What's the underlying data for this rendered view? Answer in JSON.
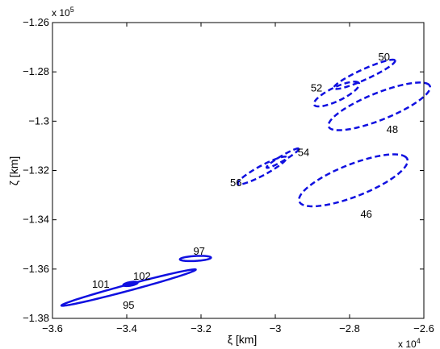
{
  "chart_data": {
    "type": "scatter",
    "title": "",
    "xlabel": "ξ [km]",
    "ylabel": "ζ [km]",
    "x_multiplier": "x 10",
    "x_multiplier_exp": "4",
    "y_multiplier": "x 10",
    "y_multiplier_exp": "5",
    "xlim": [
      -36000,
      -26000
    ],
    "ylim": [
      -138000,
      -126000
    ],
    "x_ticks": [
      -36000,
      -34000,
      -32000,
      -30000,
      -28000,
      -26000
    ],
    "x_tick_labels": [
      "−3.6",
      "−3.4",
      "−3.2",
      "−3",
      "−2.8",
      "−2.6"
    ],
    "y_ticks": [
      -138000,
      -136000,
      -134000,
      -132000,
      -130000,
      -128000,
      -126000
    ],
    "y_tick_labels": [
      "−1.38",
      "−1.36",
      "−1.34",
      "−1.32",
      "−1.3",
      "−1.28",
      "−1.26"
    ],
    "grid": false,
    "color": "#1010e0",
    "ellipses": [
      {
        "label": "46",
        "style": "dashed",
        "cx": -27900,
        "cy": -132400,
        "rx": 1700,
        "ry": 600,
        "angle_deg": 33,
        "label_x": -27550,
        "label_y": -133750
      },
      {
        "label": "48",
        "style": "dashed",
        "cx": -27200,
        "cy": -129400,
        "rx": 1600,
        "ry": 500,
        "angle_deg": 33,
        "label_x": -26850,
        "label_y": -130320
      },
      {
        "label": "50",
        "style": "dashed",
        "cx": -27600,
        "cy": -128100,
        "rx": 1000,
        "ry": 190,
        "angle_deg": 35,
        "label_x": -27070,
        "label_y": -127370
      },
      {
        "label": "52",
        "style": "dashed",
        "cx": -28350,
        "cy": -128900,
        "rx": 750,
        "ry": 250,
        "angle_deg": 38,
        "label_x": -28890,
        "label_y": -128630
      },
      {
        "label": "54",
        "style": "dashed",
        "cx": -29800,
        "cy": -131500,
        "rx": 580,
        "ry": 90,
        "angle_deg": 42,
        "label_x": -29240,
        "label_y": -131240
      },
      {
        "label": "56",
        "style": "dashed",
        "cx": -30350,
        "cy": -132000,
        "rx": 850,
        "ry": 170,
        "angle_deg": 40,
        "label_x": -31060,
        "label_y": -132480
      },
      {
        "label": "95",
        "style": "solid",
        "cx": -33950,
        "cy": -136750,
        "rx": 1950,
        "ry": 120,
        "angle_deg": 22,
        "label_x": -33950,
        "label_y": -137450
      },
      {
        "label": "97",
        "style": "solid",
        "cx": -32150,
        "cy": -135570,
        "rx": 420,
        "ry": 100,
        "angle_deg": 5,
        "label_x": -32050,
        "label_y": -135250
      },
      {
        "label": "101",
        "style": "solid",
        "cx": -33900,
        "cy": -136600,
        "rx": 200,
        "ry": 70,
        "angle_deg": 16,
        "label_x": -34700,
        "label_y": -136600
      },
      {
        "label": "102",
        "style": "solid",
        "cx": -33900,
        "cy": -136620,
        "rx": 120,
        "ry": 50,
        "angle_deg": 16,
        "label_x": -33590,
        "label_y": -136270
      }
    ]
  }
}
